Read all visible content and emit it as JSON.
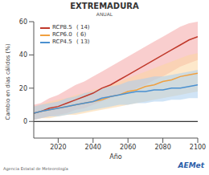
{
  "chart_data": {
    "type": "line",
    "title": "EXTREMADURA",
    "subtitle": "ANUAL",
    "x_label": "Año",
    "y_label": "Cambio en días cálidos (%)",
    "footer": "Agencia Estatal de Meteorología",
    "logo": "AEMet",
    "x": [
      2006,
      2010,
      2015,
      2020,
      2025,
      2030,
      2035,
      2040,
      2045,
      2050,
      2055,
      2060,
      2065,
      2070,
      2075,
      2080,
      2085,
      2090,
      2095,
      2100
    ],
    "xlim": [
      2006,
      2100
    ],
    "xticks": [
      2020,
      2040,
      2060,
      2080,
      2100
    ],
    "ylim": [
      -10,
      60
    ],
    "yticks": [
      0,
      20,
      40,
      60
    ],
    "hline": 0,
    "grid": false,
    "legend": "upper left",
    "series": [
      {
        "name": "RCP8.5",
        "models_label": "( 14)",
        "color": "#c0392b",
        "band_color": "#f4a6a6",
        "values": [
          5,
          6,
          8,
          9,
          11,
          13,
          15,
          17,
          20,
          22,
          25,
          28,
          31,
          34,
          37,
          40,
          43,
          46,
          49,
          51
        ],
        "lower": [
          1,
          2,
          3,
          4,
          5,
          7,
          8,
          10,
          12,
          14,
          16,
          18,
          20,
          22,
          25,
          27,
          30,
          33,
          35,
          37
        ],
        "upper": [
          10,
          11,
          14,
          16,
          19,
          22,
          24,
          27,
          30,
          33,
          36,
          39,
          42,
          45,
          48,
          51,
          54,
          57,
          59,
          60
        ]
      },
      {
        "name": "RCP6.0",
        "models_label": "( 6)",
        "color": "#f0a040",
        "band_color": "#fbd5a0",
        "values": [
          5,
          6,
          7,
          8,
          9,
          10,
          11,
          12,
          13,
          15,
          16,
          18,
          19,
          21,
          22,
          24,
          25,
          27,
          28,
          29
        ],
        "lower": [
          1,
          2,
          2,
          3,
          4,
          4,
          5,
          6,
          7,
          8,
          9,
          10,
          11,
          12,
          13,
          14,
          15,
          16,
          17,
          18
        ],
        "upper": [
          9,
          10,
          12,
          13,
          14,
          16,
          17,
          19,
          20,
          22,
          24,
          26,
          28,
          30,
          32,
          34,
          36,
          38,
          40,
          41
        ]
      },
      {
        "name": "RCP4.5",
        "models_label": "( 13)",
        "color": "#4a90d0",
        "band_color": "#a9cdee",
        "values": [
          5,
          6,
          7,
          8,
          9,
          10,
          11,
          12,
          14,
          15,
          16,
          17,
          18,
          18,
          19,
          19,
          20,
          20,
          21,
          22
        ],
        "lower": [
          1,
          2,
          3,
          3,
          4,
          5,
          6,
          7,
          8,
          9,
          10,
          10,
          11,
          11,
          12,
          12,
          13,
          13,
          14,
          14
        ],
        "upper": [
          9,
          10,
          11,
          12,
          14,
          15,
          17,
          18,
          20,
          21,
          22,
          24,
          25,
          26,
          27,
          27,
          28,
          29,
          30,
          31
        ]
      }
    ]
  }
}
